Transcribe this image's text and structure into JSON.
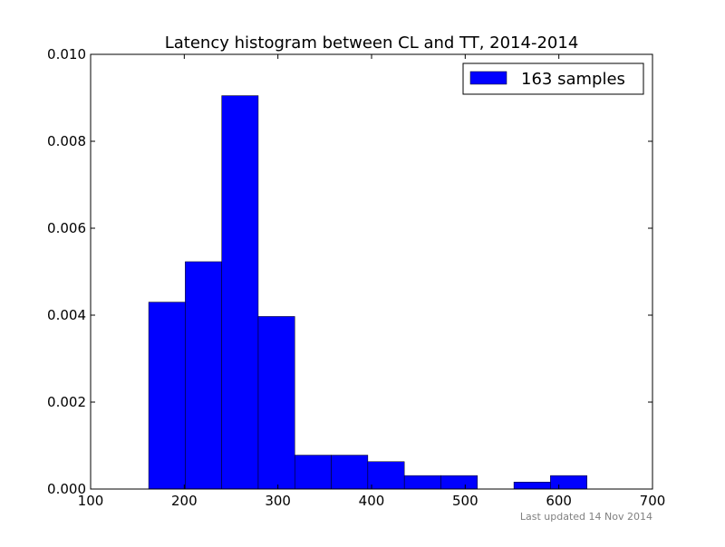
{
  "chart_data": {
    "type": "bar",
    "title": "Latency histogram between CL and TT, 2014-2014",
    "xlabel": "",
    "ylabel": "",
    "xlim": [
      100,
      700
    ],
    "ylim": [
      0,
      0.01
    ],
    "x_ticks": [
      "100",
      "200",
      "300",
      "400",
      "500",
      "600",
      "700"
    ],
    "y_ticks": [
      "0.000",
      "0.002",
      "0.004",
      "0.006",
      "0.008",
      "0.010"
    ],
    "bins": [
      {
        "x0": 162,
        "x1": 201,
        "value": 0.0043
      },
      {
        "x0": 201,
        "x1": 240,
        "value": 0.00523
      },
      {
        "x0": 240,
        "x1": 279,
        "value": 0.00905
      },
      {
        "x0": 279,
        "x1": 318,
        "value": 0.00397
      },
      {
        "x0": 318,
        "x1": 357,
        "value": 0.00078
      },
      {
        "x0": 357,
        "x1": 396,
        "value": 0.00078
      },
      {
        "x0": 396,
        "x1": 435,
        "value": 0.00063
      },
      {
        "x0": 435,
        "x1": 474,
        "value": 0.00031
      },
      {
        "x0": 474,
        "x1": 513,
        "value": 0.00031
      },
      {
        "x0": 513,
        "x1": 552,
        "value": 0.0
      },
      {
        "x0": 552,
        "x1": 591,
        "value": 0.00016
      },
      {
        "x0": 591,
        "x1": 630,
        "value": 0.00031
      }
    ],
    "series": [
      {
        "name": "163 samples",
        "color": "#0000ff"
      }
    ],
    "legend_position": "top-right",
    "grid": false
  },
  "footer": {
    "updated": "Last updated 14 Nov 2014"
  }
}
